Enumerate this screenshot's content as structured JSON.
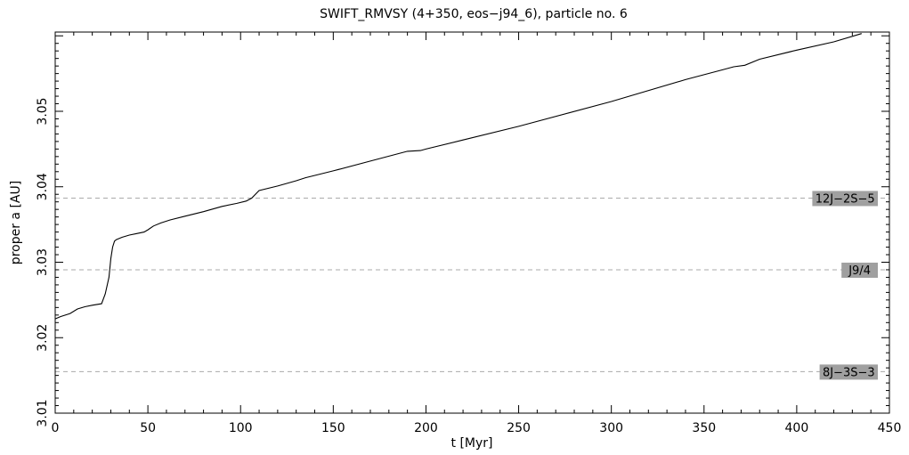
{
  "chart_data": {
    "type": "line",
    "title": "SWIFT_RMVSY (4+350, eos−j94_6), particle no. 6",
    "xlabel": "t [Myr]",
    "ylabel": "proper a [AU]",
    "xlim": [
      0,
      450
    ],
    "ylim": [
      3.01,
      3.0605
    ],
    "x_ticks": [
      0,
      50,
      100,
      150,
      200,
      250,
      300,
      350,
      400,
      450
    ],
    "x_tick_labels": [
      "0",
      "50",
      "100",
      "150",
      "200",
      "250",
      "300",
      "350",
      "400",
      "450"
    ],
    "y_ticks": [
      3.01,
      3.02,
      3.03,
      3.04,
      3.05
    ],
    "y_tick_labels": [
      "3.01",
      "3.02",
      "3.03",
      "3.04",
      "3.05"
    ],
    "grid": false,
    "series": [
      {
        "x": [
          0,
          3,
          8,
          12,
          16,
          20,
          25,
          27,
          29,
          30,
          31,
          32,
          33,
          36,
          40,
          44,
          48,
          50,
          53,
          57,
          62,
          70,
          80,
          90,
          98,
          103,
          106,
          110,
          120,
          130,
          135,
          150,
          170,
          190,
          197,
          200,
          220,
          250,
          300,
          340,
          360,
          366,
          372,
          380,
          400,
          420,
          435
        ],
        "y": [
          3.0225,
          3.0228,
          3.0232,
          3.0238,
          3.0241,
          3.0243,
          3.0245,
          3.0258,
          3.028,
          3.0305,
          3.032,
          3.0328,
          3.033,
          3.0333,
          3.0336,
          3.0338,
          3.034,
          3.0343,
          3.0348,
          3.0352,
          3.0356,
          3.0361,
          3.0367,
          3.0374,
          3.0378,
          3.0381,
          3.0385,
          3.0395,
          3.0401,
          3.0408,
          3.0412,
          3.0421,
          3.0434,
          3.0447,
          3.0448,
          3.045,
          3.0462,
          3.048,
          3.0513,
          3.0542,
          3.0555,
          3.0559,
          3.0561,
          3.0569,
          3.0581,
          3.0592,
          3.0603
        ]
      }
    ],
    "resonances": [
      {
        "label": "12J−2S−5",
        "a": 3.0385
      },
      {
        "label": "J9/4",
        "a": 3.029
      },
      {
        "label": "8J−3S−3",
        "a": 3.0155
      }
    ],
    "resonance_line_color": "#aaaaaa",
    "resonance_label_bg": "#a0a0a0",
    "curve_color": "#000000"
  }
}
